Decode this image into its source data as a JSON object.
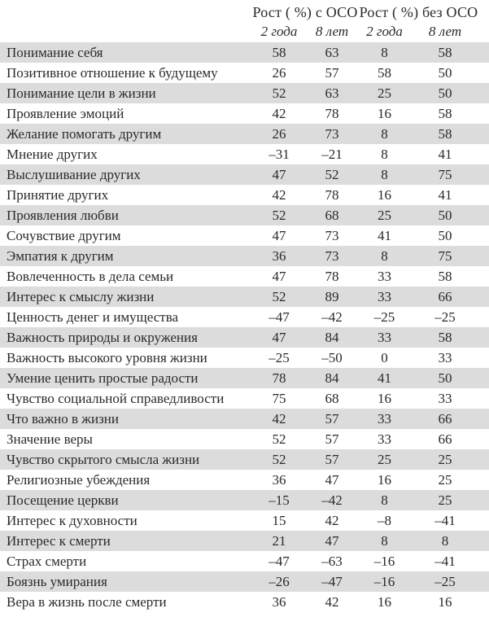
{
  "colors": {
    "row_shade": "#dcdcdc",
    "text": "#2a2a2a",
    "background": "#ffffff"
  },
  "table": {
    "groups": [
      "Рост ( %) с ОСО",
      "Рост ( %) без ОСО"
    ],
    "subheaders": [
      "2 года",
      "8 лет",
      "2 года",
      "8 лет"
    ],
    "rows": [
      {
        "label": "Понимание себя",
        "values": [
          "58",
          "63",
          "8",
          "58"
        ]
      },
      {
        "label": "Позитивное отношение к будущему",
        "values": [
          "26",
          "57",
          "58",
          "50"
        ]
      },
      {
        "label": "Понимание цели в жизни",
        "values": [
          "52",
          "63",
          "25",
          "50"
        ]
      },
      {
        "label": "Проявление эмоций",
        "values": [
          "42",
          "78",
          "16",
          "58"
        ]
      },
      {
        "label": "Желание помогать другим",
        "values": [
          "26",
          "73",
          "8",
          "58"
        ]
      },
      {
        "label": "Мнение других",
        "values": [
          "–31",
          "–21",
          "8",
          "41"
        ]
      },
      {
        "label": "Выслушивание других",
        "values": [
          "47",
          "52",
          "8",
          "75"
        ]
      },
      {
        "label": "Принятие других",
        "values": [
          "42",
          "78",
          "16",
          "41"
        ]
      },
      {
        "label": "Проявления любви",
        "values": [
          "52",
          "68",
          "25",
          "50"
        ]
      },
      {
        "label": "Сочувствие другим",
        "values": [
          "47",
          "73",
          "41",
          "50"
        ]
      },
      {
        "label": "Эмпатия к другим",
        "values": [
          "36",
          "73",
          "8",
          "75"
        ]
      },
      {
        "label": "Вовлеченность в дела семьи",
        "values": [
          "47",
          "78",
          "33",
          "58"
        ]
      },
      {
        "label": "Интерес к смыслу жизни",
        "values": [
          "52",
          "89",
          "33",
          "66"
        ]
      },
      {
        "label": "Ценность денег и имущества",
        "values": [
          "–47",
          "–42",
          "–25",
          "–25"
        ]
      },
      {
        "label": "Важность природы и окружения",
        "values": [
          "47",
          "84",
          "33",
          "58"
        ]
      },
      {
        "label": "Важность высокого уровня жизни",
        "values": [
          "–25",
          "–50",
          "0",
          "33"
        ]
      },
      {
        "label": "Умение ценить простые радости",
        "values": [
          "78",
          "84",
          "41",
          "50"
        ]
      },
      {
        "label": "Чувство социальной справедливости",
        "values": [
          "75",
          "68",
          "16",
          "33"
        ]
      },
      {
        "label": "Что важно в жизни",
        "values": [
          "42",
          "57",
          "33",
          "66"
        ]
      },
      {
        "label": "Значение веры",
        "values": [
          "52",
          "57",
          "33",
          "66"
        ]
      },
      {
        "label": "Чувство скрытого смысла жизни",
        "values": [
          "52",
          "57",
          "25",
          "25"
        ]
      },
      {
        "label": "Религиозные убеждения",
        "values": [
          "36",
          "47",
          "16",
          "25"
        ]
      },
      {
        "label": "Посещение церкви",
        "values": [
          "–15",
          "–42",
          "8",
          "25"
        ]
      },
      {
        "label": "Интерес к духовности",
        "values": [
          "15",
          "42",
          "–8",
          "–41"
        ]
      },
      {
        "label": "Интерес к смерти",
        "values": [
          "21",
          "47",
          "8",
          "8"
        ]
      },
      {
        "label": "Страх смерти",
        "values": [
          "–47",
          "–63",
          "–16",
          "–41"
        ]
      },
      {
        "label": "Боязнь умирания",
        "values": [
          "–26",
          "–47",
          "–16",
          "–25"
        ]
      },
      {
        "label": "Вера в жизнь после смерти",
        "values": [
          "36",
          "42",
          "16",
          "16"
        ]
      }
    ]
  }
}
